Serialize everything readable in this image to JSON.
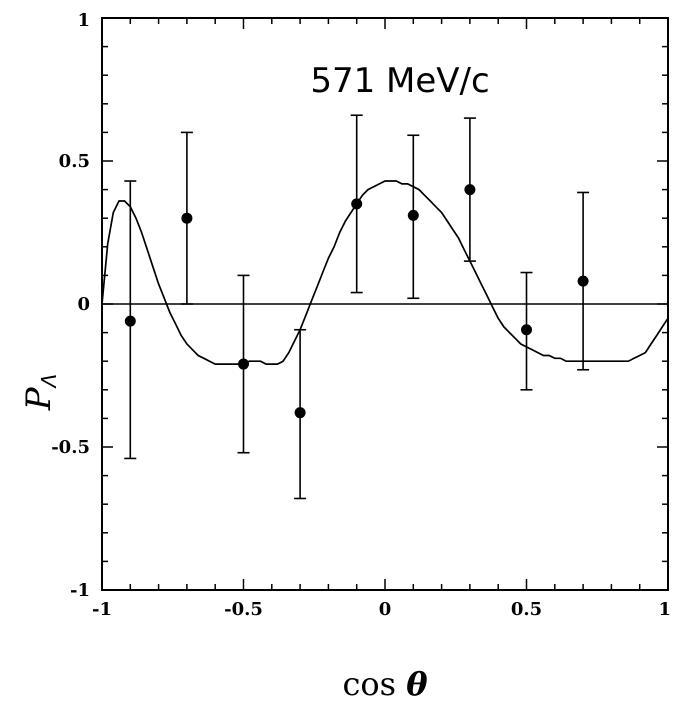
{
  "chart_data": {
    "type": "scatter",
    "annotation": "571 MeV/c",
    "xlabel": "cos θ",
    "xlabel_parts": {
      "main": "cos",
      "symbol": "θ"
    },
    "ylabel": "PΛ",
    "ylabel_parts": {
      "main": "P",
      "sub": "Λ"
    },
    "xlim": [
      -1,
      1
    ],
    "ylim": [
      -1,
      1
    ],
    "x_tick_labels": [
      "-1",
      "-0.5",
      "0",
      "0.5",
      "1"
    ],
    "x_tick_values": [
      -1,
      -0.5,
      0,
      0.5,
      1
    ],
    "y_tick_labels": [
      "-1",
      "-0.5",
      "0",
      "0.5",
      "1"
    ],
    "y_tick_values": [
      -1,
      -0.5,
      0,
      0.5,
      1
    ],
    "grid": false,
    "zero_line": true,
    "series": [
      {
        "kind": "points_with_errors",
        "x": [
          -0.9,
          -0.7,
          -0.5,
          -0.3,
          -0.1,
          0.1,
          0.3,
          0.5,
          0.7
        ],
        "y": [
          -0.06,
          0.3,
          -0.21,
          -0.38,
          0.35,
          0.31,
          0.4,
          -0.09,
          0.08
        ],
        "err_low": [
          -0.54,
          0.0,
          -0.52,
          -0.68,
          0.04,
          0.02,
          0.15,
          -0.3,
          -0.23
        ],
        "err_high": [
          0.43,
          0.6,
          0.1,
          -0.09,
          0.66,
          0.59,
          0.65,
          0.11,
          0.39
        ]
      },
      {
        "kind": "curve",
        "x": [
          -1.0,
          -0.98,
          -0.96,
          -0.94,
          -0.92,
          -0.9,
          -0.88,
          -0.86,
          -0.84,
          -0.82,
          -0.8,
          -0.78,
          -0.76,
          -0.74,
          -0.72,
          -0.7,
          -0.68,
          -0.66,
          -0.64,
          -0.62,
          -0.6,
          -0.58,
          -0.56,
          -0.54,
          -0.52,
          -0.5,
          -0.48,
          -0.46,
          -0.44,
          -0.42,
          -0.4,
          -0.38,
          -0.36,
          -0.34,
          -0.32,
          -0.3,
          -0.28,
          -0.26,
          -0.24,
          -0.22,
          -0.2,
          -0.18,
          -0.16,
          -0.14,
          -0.12,
          -0.1,
          -0.08,
          -0.06,
          -0.04,
          -0.02,
          0.0,
          0.02,
          0.04,
          0.06,
          0.08,
          0.1,
          0.12,
          0.14,
          0.16,
          0.18,
          0.2,
          0.22,
          0.24,
          0.26,
          0.28,
          0.3,
          0.32,
          0.34,
          0.36,
          0.38,
          0.4,
          0.42,
          0.44,
          0.46,
          0.48,
          0.5,
          0.52,
          0.54,
          0.56,
          0.58,
          0.6,
          0.62,
          0.64,
          0.66,
          0.68,
          0.7,
          0.72,
          0.74,
          0.76,
          0.78,
          0.8,
          0.82,
          0.84,
          0.86,
          0.88,
          0.9,
          0.92,
          0.94,
          0.96,
          0.98,
          1.0
        ],
        "y": [
          0.0,
          0.21,
          0.32,
          0.36,
          0.36,
          0.34,
          0.3,
          0.25,
          0.19,
          0.13,
          0.07,
          0.02,
          -0.03,
          -0.07,
          -0.11,
          -0.14,
          -0.16,
          -0.18,
          -0.19,
          -0.2,
          -0.21,
          -0.21,
          -0.21,
          -0.21,
          -0.21,
          -0.21,
          -0.2,
          -0.2,
          -0.2,
          -0.21,
          -0.21,
          -0.21,
          -0.2,
          -0.17,
          -0.13,
          -0.09,
          -0.04,
          0.01,
          0.06,
          0.11,
          0.16,
          0.2,
          0.25,
          0.29,
          0.32,
          0.35,
          0.38,
          0.4,
          0.41,
          0.42,
          0.43,
          0.43,
          0.43,
          0.42,
          0.42,
          0.41,
          0.4,
          0.38,
          0.36,
          0.34,
          0.32,
          0.29,
          0.26,
          0.23,
          0.19,
          0.15,
          0.11,
          0.07,
          0.03,
          -0.01,
          -0.05,
          -0.08,
          -0.1,
          -0.12,
          -0.14,
          -0.15,
          -0.16,
          -0.17,
          -0.18,
          -0.18,
          -0.19,
          -0.19,
          -0.2,
          -0.2,
          -0.2,
          -0.2,
          -0.2,
          -0.2,
          -0.2,
          -0.2,
          -0.2,
          -0.2,
          -0.2,
          -0.2,
          -0.19,
          -0.18,
          -0.17,
          -0.14,
          -0.11,
          -0.08,
          -0.05
        ]
      }
    ]
  }
}
